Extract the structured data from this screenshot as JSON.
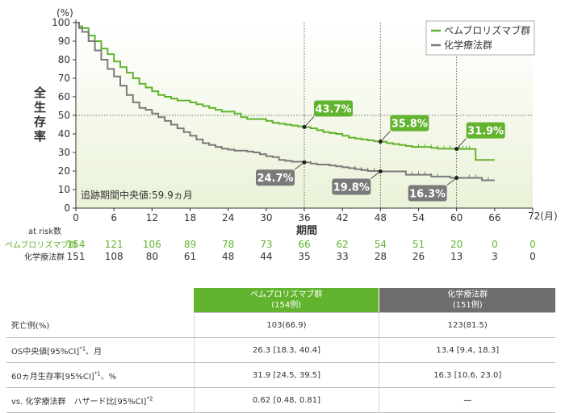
{
  "chart_data": {
    "type": "line",
    "subtype": "kaplan-meier",
    "y_unit": "(%)",
    "ylabel": "全生存率",
    "xlabel": "期間",
    "x_unit": "72(月)",
    "x_ticks": [
      0,
      6,
      12,
      18,
      24,
      30,
      36,
      42,
      48,
      54,
      60,
      66
    ],
    "y_ticks": [
      0,
      10,
      20,
      30,
      40,
      50,
      60,
      70,
      80,
      90,
      100
    ],
    "xlim": [
      0,
      72
    ],
    "ylim": [
      0,
      100
    ],
    "grid": false,
    "reference_line_y": 50,
    "reference_lines_x": [
      36,
      48,
      60
    ],
    "legend_position": "top-right",
    "note": "追跡期間中央値:59.9ヵ月",
    "series": [
      {
        "name": "ペムブロリズマブ群",
        "color": "#62b32e",
        "points": [
          [
            0,
            100
          ],
          [
            0.5,
            98
          ],
          [
            1,
            97
          ],
          [
            2,
            93
          ],
          [
            3,
            90
          ],
          [
            4,
            86
          ],
          [
            5,
            83
          ],
          [
            6,
            79
          ],
          [
            7,
            76
          ],
          [
            8,
            73
          ],
          [
            9,
            70
          ],
          [
            10,
            67
          ],
          [
            11,
            65
          ],
          [
            12,
            63
          ],
          [
            13,
            61
          ],
          [
            14,
            60
          ],
          [
            15,
            59
          ],
          [
            16,
            58
          ],
          [
            17,
            58
          ],
          [
            18,
            57
          ],
          [
            19,
            56
          ],
          [
            20,
            55
          ],
          [
            21,
            54
          ],
          [
            22,
            53
          ],
          [
            23,
            52
          ],
          [
            24,
            52
          ],
          [
            25,
            51
          ],
          [
            26,
            49
          ],
          [
            27,
            48
          ],
          [
            28,
            48
          ],
          [
            29,
            48
          ],
          [
            30,
            47
          ],
          [
            31,
            46
          ],
          [
            32,
            45.5
          ],
          [
            33,
            45
          ],
          [
            34,
            44.5
          ],
          [
            35,
            44
          ],
          [
            36,
            43.7
          ],
          [
            37,
            43
          ],
          [
            38,
            42
          ],
          [
            39,
            41
          ],
          [
            40,
            40.5
          ],
          [
            41,
            40
          ],
          [
            42,
            39
          ],
          [
            43,
            38
          ],
          [
            44,
            37.5
          ],
          [
            45,
            37
          ],
          [
            46,
            36.5
          ],
          [
            47,
            36
          ],
          [
            48,
            35.8
          ],
          [
            49,
            35
          ],
          [
            50,
            34.5
          ],
          [
            51,
            34
          ],
          [
            52,
            33.5
          ],
          [
            53,
            33
          ],
          [
            54,
            33
          ],
          [
            55,
            33
          ],
          [
            56,
            32.5
          ],
          [
            57,
            32
          ],
          [
            58,
            32
          ],
          [
            59,
            32
          ],
          [
            60,
            31.9
          ],
          [
            61,
            31.9
          ],
          [
            62,
            31.9
          ],
          [
            63,
            26
          ],
          [
            64,
            26
          ],
          [
            65,
            26
          ],
          [
            66,
            26
          ]
        ],
        "landmarks": [
          {
            "x": 36,
            "value": "43.7%"
          },
          {
            "x": 48,
            "value": "35.8%"
          },
          {
            "x": 60,
            "value": "31.9%"
          }
        ],
        "at_risk": [
          154,
          121,
          106,
          89,
          78,
          73,
          66,
          62,
          54,
          51,
          20,
          0,
          0
        ]
      },
      {
        "name": "化学療法群",
        "color": "#7a7a7a",
        "points": [
          [
            0,
            100
          ],
          [
            0.5,
            97
          ],
          [
            1,
            95
          ],
          [
            2,
            90
          ],
          [
            3,
            85
          ],
          [
            4,
            80
          ],
          [
            5,
            75
          ],
          [
            6,
            71
          ],
          [
            7,
            66
          ],
          [
            8,
            61
          ],
          [
            9,
            57
          ],
          [
            10,
            54
          ],
          [
            11,
            53
          ],
          [
            12,
            51
          ],
          [
            13,
            49
          ],
          [
            14,
            47
          ],
          [
            15,
            45
          ],
          [
            16,
            43
          ],
          [
            17,
            41
          ],
          [
            18,
            39
          ],
          [
            19,
            37
          ],
          [
            20,
            35
          ],
          [
            21,
            34
          ],
          [
            22,
            33
          ],
          [
            23,
            32
          ],
          [
            24,
            31.5
          ],
          [
            25,
            31
          ],
          [
            26,
            31
          ],
          [
            27,
            30.5
          ],
          [
            28,
            30
          ],
          [
            29,
            29
          ],
          [
            30,
            28
          ],
          [
            31,
            27.5
          ],
          [
            32,
            26
          ],
          [
            33,
            25.5
          ],
          [
            34,
            25
          ],
          [
            35,
            25
          ],
          [
            36,
            24.7
          ],
          [
            37,
            24
          ],
          [
            38,
            23.5
          ],
          [
            39,
            23.5
          ],
          [
            40,
            23
          ],
          [
            41,
            22.5
          ],
          [
            42,
            22
          ],
          [
            43,
            21.5
          ],
          [
            44,
            21
          ],
          [
            45,
            20.5
          ],
          [
            46,
            20
          ],
          [
            47,
            20
          ],
          [
            48,
            19.8
          ],
          [
            49,
            19.8
          ],
          [
            50,
            19.8
          ],
          [
            51,
            19.8
          ],
          [
            52,
            18
          ],
          [
            53,
            18
          ],
          [
            54,
            18
          ],
          [
            55,
            18
          ],
          [
            56,
            17
          ],
          [
            57,
            17
          ],
          [
            58,
            17
          ],
          [
            59,
            16.3
          ],
          [
            60,
            16.3
          ],
          [
            61,
            16.3
          ],
          [
            62,
            16.3
          ],
          [
            63,
            16.3
          ],
          [
            64,
            15
          ],
          [
            65,
            15
          ],
          [
            66,
            15
          ]
        ],
        "landmarks": [
          {
            "x": 36,
            "value": "24.7%"
          },
          {
            "x": 48,
            "value": "19.8%"
          },
          {
            "x": 60,
            "value": "16.3%"
          }
        ],
        "at_risk": [
          151,
          108,
          80,
          61,
          48,
          44,
          35,
          33,
          28,
          26,
          13,
          3,
          0
        ]
      }
    ],
    "at_risk_label": "at risk数"
  },
  "table": {
    "headers": [
      {
        "name": "ペムブロリズマブ群",
        "count": "(154例)"
      },
      {
        "name": "化学療法群",
        "count": "(151例)"
      }
    ],
    "rows": [
      {
        "label": "死亡例(%)",
        "sup": "",
        "label_tail": "",
        "pem": "103(66.9)",
        "chemo": "123(81.5)"
      },
      {
        "label": "OS中央値[95%CI]",
        "sup": "*1",
        "label_tail": "、月",
        "pem": "26.3 [18.3, 40.4]",
        "chemo": "13.4 [9.4, 18.3]"
      },
      {
        "label": "60ヵ月生存率[95%CI]",
        "sup": "*1",
        "label_tail": "、%",
        "pem": "31.9 [24.5, 39.5]",
        "chemo": "16.3 [10.6, 23.0]"
      },
      {
        "label": "vs. 化学療法群　ハザード比[95%CI]",
        "sup": "*2",
        "label_tail": "",
        "pem": "0.62 [0.48, 0.81]",
        "chemo": "—"
      }
    ]
  }
}
